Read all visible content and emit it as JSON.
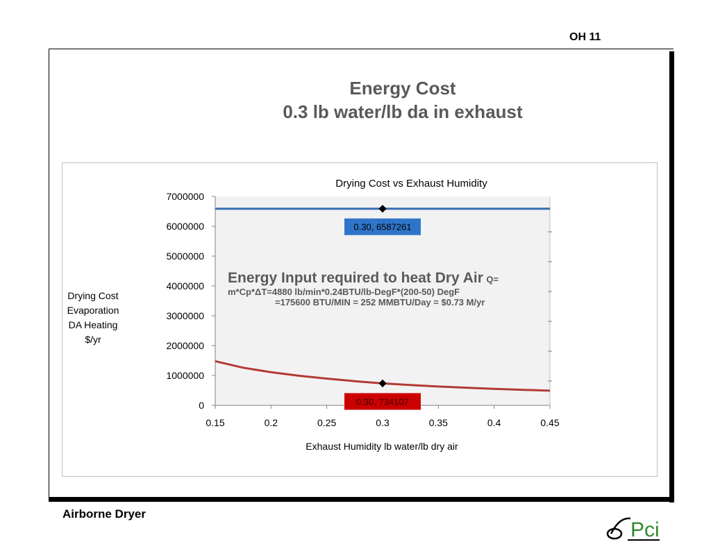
{
  "slide": {
    "number": "OH 11",
    "title_line1": "Energy Cost",
    "title_line2": "0.3 lb water/lb da in exhaust",
    "footer": "Airborne Dryer",
    "logo_text": "Pci"
  },
  "chart_data": {
    "type": "line",
    "title": "Drying Cost  vs Exhaust  Humidity",
    "xlabel": "Exhaust Humidity lb water/lb dry air",
    "ylabel_lines": [
      "Drying Cost",
      "Evaporation",
      "DA Heating",
      "$/yr"
    ],
    "xlim": [
      0.15,
      0.45
    ],
    "ylim": [
      0,
      7000000
    ],
    "x_ticks": [
      "0.15",
      "0.2",
      "0.25",
      "0.3",
      "0.35",
      "0.4",
      "0.45"
    ],
    "y_ticks": [
      "0",
      "1000000",
      "2000000",
      "3000000",
      "4000000",
      "5000000",
      "6000000",
      "7000000"
    ],
    "series": [
      {
        "color": "#3a6db0",
        "x": [
          0.15,
          0.2,
          0.25,
          0.3,
          0.35,
          0.4,
          0.45
        ],
        "y": [
          6587261,
          6587261,
          6587261,
          6587261,
          6587261,
          6587261,
          6587261
        ],
        "marker": {
          "x": 0.3,
          "y": 6587261,
          "label": "0.30, 6587261",
          "label_bg": "#2e75c9"
        }
      },
      {
        "color": "#b23a32",
        "x": [
          0.15,
          0.175,
          0.2,
          0.225,
          0.25,
          0.275,
          0.3,
          0.325,
          0.35,
          0.375,
          0.4,
          0.425,
          0.45
        ],
        "y": [
          1480000,
          1260000,
          1110000,
          990000,
          895000,
          810000,
          734107,
          678000,
          630000,
          590000,
          553000,
          520000,
          490000
        ],
        "marker": {
          "x": 0.3,
          "y": 734107,
          "label": "0.30, 734107",
          "label_bg": "#cc0000"
        }
      }
    ],
    "annotation": {
      "heading": "Energy Input required to heat Dry Air",
      "q": "Q=",
      "line1": "m*Cp*ΔT=4880 lb/min*0.24BTU/lb-DegF*(200-50) DegF",
      "line2": "=175600 BTU/MIN = 252 MMBTU/Day = $0.73 M/yr"
    }
  }
}
